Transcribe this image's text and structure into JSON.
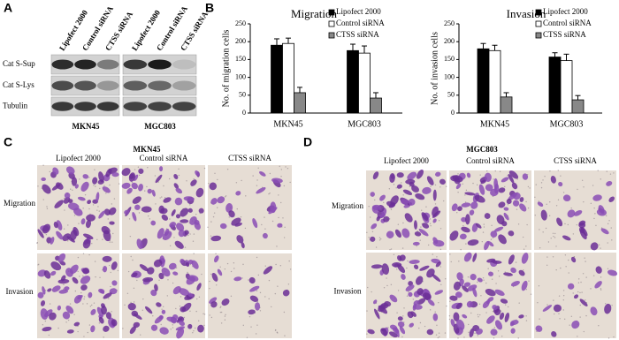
{
  "panel_a": {
    "label": "A",
    "lanes": [
      "Lipofect 2000",
      "Control siRNA",
      "CTSS siRNA",
      "Lipofect 2000",
      "Control siRNA",
      "CTSS siRNA"
    ],
    "rows": [
      "Cat S-Sup",
      "Cat S-Lys",
      "Tubulin"
    ],
    "cell_lines": [
      "MKN45",
      "MGC803"
    ]
  },
  "panel_b": {
    "label": "B"
  },
  "chart_data": [
    {
      "type": "bar",
      "title": "Migration",
      "ylabel": "No. of migration cells",
      "categories": [
        "MKN45",
        "MGC803"
      ],
      "series": [
        {
          "name": "Lipofect 2000",
          "color": "#000000",
          "values": [
            190,
            175
          ],
          "errors": [
            18,
            18
          ]
        },
        {
          "name": "Control siRNA",
          "color": "#ffffff",
          "values": [
            195,
            168
          ],
          "errors": [
            15,
            20
          ]
        },
        {
          "name": "CTSS siRNA",
          "color": "#888888",
          "values": [
            57,
            42
          ],
          "errors": [
            15,
            15
          ]
        }
      ],
      "ylim": [
        0,
        250
      ],
      "yticks": [
        0,
        50,
        100,
        150,
        200,
        250
      ]
    },
    {
      "type": "bar",
      "title": "Invasion",
      "ylabel": "No. of invasion cells",
      "categories": [
        "MKN45",
        "MGC803"
      ],
      "series": [
        {
          "name": "Lipofect 2000",
          "color": "#000000",
          "values": [
            180,
            157
          ],
          "errors": [
            15,
            12
          ]
        },
        {
          "name": "Control siRNA",
          "color": "#ffffff",
          "values": [
            175,
            147
          ],
          "errors": [
            15,
            18
          ]
        },
        {
          "name": "CTSS siRNA",
          "color": "#888888",
          "values": [
            45,
            37
          ],
          "errors": [
            12,
            12
          ]
        }
      ],
      "ylim": [
        0,
        250
      ],
      "yticks": [
        0,
        50,
        100,
        150,
        200,
        250
      ]
    }
  ],
  "panel_c": {
    "label": "C",
    "cell_line": "MKN45",
    "columns": [
      "Lipofect 2000",
      "Control siRNA",
      "CTSS siRNA"
    ],
    "rows": [
      "Migration",
      "Invasion"
    ]
  },
  "panel_d": {
    "label": "D",
    "cell_line": "MGC803",
    "columns": [
      "Lipofect 2000",
      "Control siRNA",
      "CTSS siRNA"
    ],
    "rows": [
      "Migration",
      "Invasion"
    ]
  }
}
